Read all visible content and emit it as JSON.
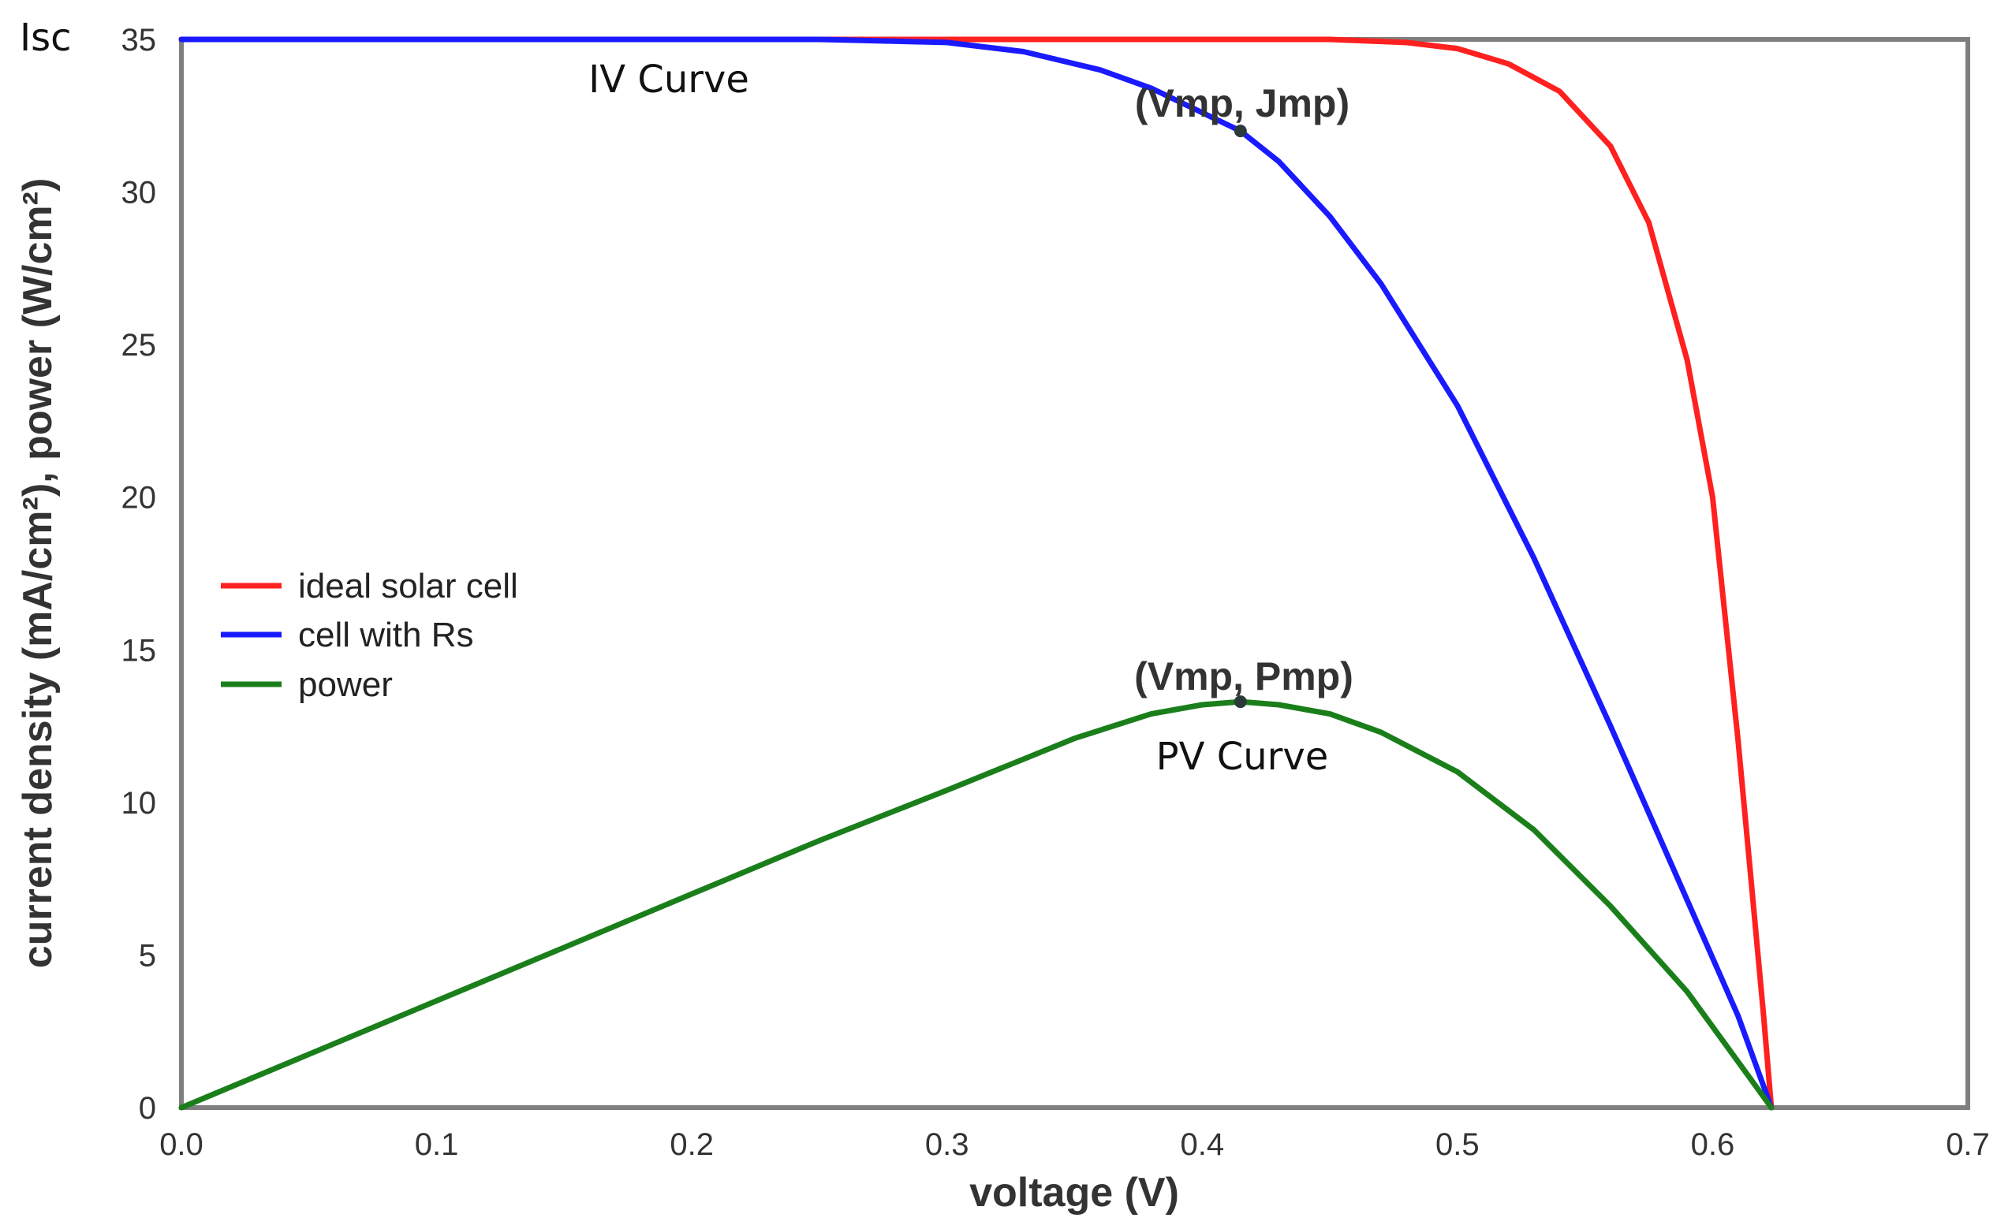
{
  "chart_data": {
    "type": "line",
    "xlabel": "voltage (V)",
    "ylabel": "current density (mA/cm²), power (W/cm²)",
    "xlim": [
      0,
      0.7
    ],
    "ylim": [
      0,
      35
    ],
    "xticks": [
      "0.0",
      "0.1",
      "0.2",
      "0.3",
      "0.4",
      "0.5",
      "0.6",
      "0.7"
    ],
    "yticks": [
      "0",
      "5",
      "10",
      "15",
      "20",
      "25",
      "30",
      "35"
    ],
    "grid": false,
    "legend_position": "middle-left",
    "series": [
      {
        "name": "ideal solar cell",
        "color": "#ff2020",
        "x": [
          0.0,
          0.1,
          0.2,
          0.3,
          0.4,
          0.45,
          0.48,
          0.5,
          0.52,
          0.54,
          0.56,
          0.575,
          0.59,
          0.6,
          0.605,
          0.61,
          0.615,
          0.62,
          0.623
        ],
        "y": [
          35,
          35,
          35,
          35,
          35,
          35,
          34.9,
          34.7,
          34.2,
          33.3,
          31.5,
          29,
          24.5,
          20,
          16,
          12,
          7.5,
          3,
          0
        ]
      },
      {
        "name": "cell with Rs",
        "color": "#1a1aff",
        "x": [
          0.0,
          0.1,
          0.2,
          0.25,
          0.3,
          0.33,
          0.36,
          0.38,
          0.4,
          0.415,
          0.43,
          0.45,
          0.47,
          0.5,
          0.53,
          0.56,
          0.59,
          0.61,
          0.623
        ],
        "y": [
          35,
          35,
          35,
          35,
          34.9,
          34.6,
          34.0,
          33.4,
          32.6,
          32.0,
          31.0,
          29.2,
          27.0,
          23.0,
          18.0,
          12.5,
          6.8,
          3.0,
          0
        ]
      },
      {
        "name": "power",
        "color": "#1a7f1a",
        "x": [
          0.0,
          0.05,
          0.1,
          0.15,
          0.2,
          0.25,
          0.3,
          0.35,
          0.38,
          0.4,
          0.415,
          0.43,
          0.45,
          0.47,
          0.5,
          0.53,
          0.56,
          0.59,
          0.61,
          0.623
        ],
        "y": [
          0,
          1.75,
          3.5,
          5.25,
          7.0,
          8.75,
          10.4,
          12.1,
          12.9,
          13.2,
          13.3,
          13.2,
          12.9,
          12.3,
          11.0,
          9.1,
          6.6,
          3.8,
          1.5,
          0
        ]
      }
    ],
    "annotations": {
      "isc": "Isc",
      "iv_curve": "IV Curve",
      "pv_curve": "PV Curve",
      "mp_iv": "(Vmp, Jmp)",
      "mp_pv": "(Vmp, Pmp)"
    },
    "points": {
      "mp_iv": {
        "x": 0.415,
        "y": 32.0
      },
      "mp_pv": {
        "x": 0.415,
        "y": 13.3
      }
    }
  }
}
